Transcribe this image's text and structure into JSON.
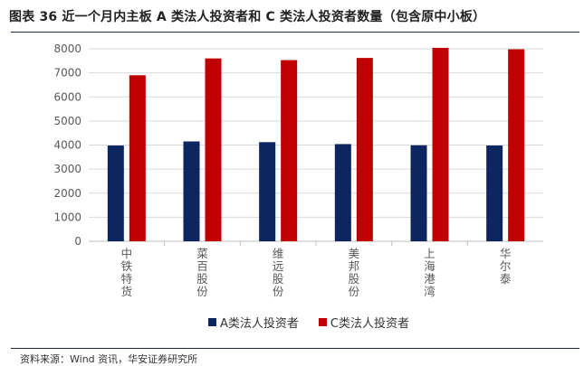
{
  "header": {
    "title": "图表 36 近一个月内主板 A 类法人投资者和 C 类法人投资者数量（包含原中小板）"
  },
  "footer": {
    "source": "资料来源：Wind 资讯，华安证券研究所"
  },
  "colors": {
    "series_a": "#0d2561",
    "series_c": "#c00000",
    "grid": "#d9d9d9",
    "axis": "#bfbfbf"
  },
  "chart_data": {
    "type": "bar",
    "title": "",
    "xlabel": "",
    "ylabel": "",
    "ylim": [
      0,
      8000
    ],
    "yticks": [
      "0",
      "1000",
      "2000",
      "3000",
      "4000",
      "5000",
      "6000",
      "7000",
      "8000"
    ],
    "grid": true,
    "legend_position": "bottom",
    "categories": [
      "中铁特货",
      "菜百股份",
      "维远股份",
      "美邦股份",
      "上海港湾",
      "华尔泰"
    ],
    "series": [
      {
        "name": "A类法人投资者",
        "values": [
          3980,
          4150,
          4120,
          4040,
          3990,
          3980
        ]
      },
      {
        "name": "C类法人投资者",
        "values": [
          6900,
          7600,
          7530,
          7620,
          8040,
          7980
        ]
      }
    ]
  }
}
